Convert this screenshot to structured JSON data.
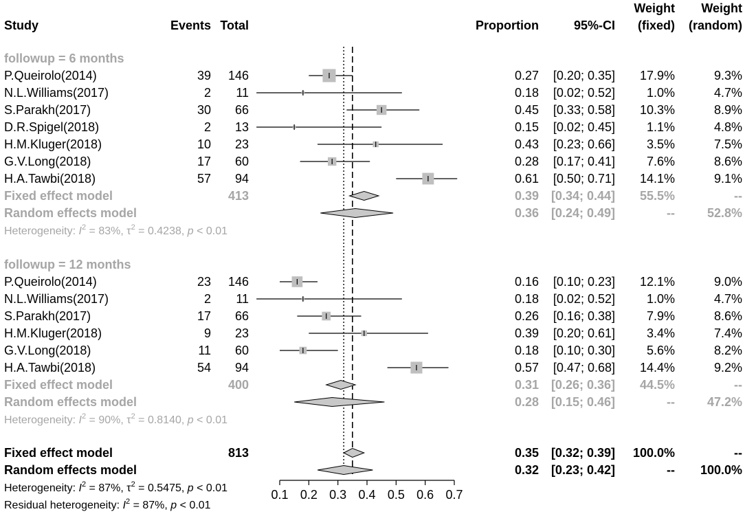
{
  "chart_data": {
    "type": "forest",
    "headers": {
      "study": "Study",
      "events": "Events",
      "total": "Total",
      "proportion": "Proportion",
      "ci": "95%-CI",
      "weight_fixed_1": "Weight",
      "weight_fixed_2": "(fixed)",
      "weight_random_1": "Weight",
      "weight_random_2": "(random)"
    },
    "axis": {
      "min": 0.1,
      "max": 0.7,
      "ticks": [
        "0.1",
        "0.2",
        "0.3",
        "0.4",
        "0.5",
        "0.6",
        "0.7"
      ]
    },
    "reference_lines": {
      "fixed": 0.35,
      "random": 0.32
    },
    "subgroups": [
      {
        "label": "followup = 6 months",
        "studies": [
          {
            "study": "P.Queirolo(2014)",
            "events": "39",
            "total": "146",
            "est": 0.27,
            "lo": 0.2,
            "hi": 0.35,
            "prop": "0.27",
            "ci": "[0.20; 0.35]",
            "wf": "17.9%",
            "wr": "9.3%"
          },
          {
            "study": "N.L.Williams(2017)",
            "events": "2",
            "total": "11",
            "est": 0.18,
            "lo": 0.02,
            "hi": 0.52,
            "prop": "0.18",
            "ci": "[0.02; 0.52]",
            "wf": "1.0%",
            "wr": "4.7%"
          },
          {
            "study": "S.Parakh(2017)",
            "events": "30",
            "total": "66",
            "est": 0.45,
            "lo": 0.33,
            "hi": 0.58,
            "prop": "0.45",
            "ci": "[0.33; 0.58]",
            "wf": "10.3%",
            "wr": "8.9%"
          },
          {
            "study": "D.R.Spigel(2018)",
            "events": "2",
            "total": "13",
            "est": 0.15,
            "lo": 0.02,
            "hi": 0.45,
            "prop": "0.15",
            "ci": "[0.02; 0.45]",
            "wf": "1.1%",
            "wr": "4.8%"
          },
          {
            "study": "H.M.Kluger(2018)",
            "events": "10",
            "total": "23",
            "est": 0.43,
            "lo": 0.23,
            "hi": 0.66,
            "prop": "0.43",
            "ci": "[0.23; 0.66]",
            "wf": "3.5%",
            "wr": "7.5%"
          },
          {
            "study": "G.V.Long(2018)",
            "events": "17",
            "total": "60",
            "est": 0.28,
            "lo": 0.17,
            "hi": 0.41,
            "prop": "0.28",
            "ci": "[0.17; 0.41]",
            "wf": "7.6%",
            "wr": "8.6%"
          },
          {
            "study": "H.A.Tawbi(2018)",
            "events": "57",
            "total": "94",
            "est": 0.61,
            "lo": 0.5,
            "hi": 0.71,
            "prop": "0.61",
            "ci": "[0.50; 0.71]",
            "wf": "14.1%",
            "wr": "9.1%"
          }
        ],
        "fixed": {
          "label": "Fixed effect model",
          "total": "413",
          "est": 0.39,
          "lo": 0.34,
          "hi": 0.44,
          "prop": "0.39",
          "ci": "[0.34; 0.44]",
          "wf": "55.5%",
          "wr": "--"
        },
        "random": {
          "label": "Random effects model",
          "est": 0.36,
          "lo": 0.24,
          "hi": 0.49,
          "prop": "0.36",
          "ci": "[0.24; 0.49]",
          "wf": "--",
          "wr": "52.8%"
        },
        "het": {
          "prefix": "Heterogeneity: ",
          "i2": "2",
          "i2_val": " = 83%, ",
          "tau": "τ",
          "tau_val": " = 0.4238, ",
          "p": "p",
          "p_val": " < 0.01"
        }
      },
      {
        "label": "followup = 12 months",
        "studies": [
          {
            "study": "P.Queirolo(2014)",
            "events": "23",
            "total": "146",
            "est": 0.16,
            "lo": 0.1,
            "hi": 0.23,
            "prop": "0.16",
            "ci": "[0.10; 0.23]",
            "wf": "12.1%",
            "wr": "9.0%"
          },
          {
            "study": "N.L.Williams(2017)",
            "events": "2",
            "total": "11",
            "est": 0.18,
            "lo": 0.02,
            "hi": 0.52,
            "prop": "0.18",
            "ci": "[0.02; 0.52]",
            "wf": "1.0%",
            "wr": "4.7%"
          },
          {
            "study": "S.Parakh(2017)",
            "events": "17",
            "total": "66",
            "est": 0.26,
            "lo": 0.16,
            "hi": 0.38,
            "prop": "0.26",
            "ci": "[0.16; 0.38]",
            "wf": "7.9%",
            "wr": "8.6%"
          },
          {
            "study": "H.M.Kluger(2018)",
            "events": "9",
            "total": "23",
            "est": 0.39,
            "lo": 0.2,
            "hi": 0.61,
            "prop": "0.39",
            "ci": "[0.20; 0.61]",
            "wf": "3.4%",
            "wr": "7.4%"
          },
          {
            "study": "G.V.Long(2018)",
            "events": "11",
            "total": "60",
            "est": 0.18,
            "lo": 0.1,
            "hi": 0.3,
            "prop": "0.18",
            "ci": "[0.10; 0.30]",
            "wf": "5.6%",
            "wr": "8.2%"
          },
          {
            "study": "H.A.Tawbi(2018)",
            "events": "54",
            "total": "94",
            "est": 0.57,
            "lo": 0.47,
            "hi": 0.68,
            "prop": "0.57",
            "ci": "[0.47; 0.68]",
            "wf": "14.4%",
            "wr": "9.2%"
          }
        ],
        "fixed": {
          "label": "Fixed effect model",
          "total": "400",
          "est": 0.31,
          "lo": 0.26,
          "hi": 0.36,
          "prop": "0.31",
          "ci": "[0.26; 0.36]",
          "wf": "44.5%",
          "wr": "--"
        },
        "random": {
          "label": "Random effects model",
          "est": 0.28,
          "lo": 0.15,
          "hi": 0.46,
          "prop": "0.28",
          "ci": "[0.15; 0.46]",
          "wf": "--",
          "wr": "47.2%"
        },
        "het": {
          "prefix": "Heterogeneity: ",
          "i2": "2",
          "i2_val": " = 90%, ",
          "tau": "τ",
          "tau_val": " = 0.8140, ",
          "p": "p",
          "p_val": " < 0.01"
        }
      }
    ],
    "overall": {
      "fixed": {
        "label": "Fixed effect model",
        "total": "813",
        "est": 0.35,
        "lo": 0.32,
        "hi": 0.39,
        "prop": "0.35",
        "ci": "[0.32; 0.39]",
        "wf": "100.0%",
        "wr": "--"
      },
      "random": {
        "label": "Random effects model",
        "est": 0.32,
        "lo": 0.23,
        "hi": 0.42,
        "prop": "0.32",
        "ci": "[0.23; 0.42]",
        "wf": "--",
        "wr": "100.0%"
      },
      "het": {
        "prefix": "Heterogeneity: ",
        "i2": "2",
        "i2_val": " = 87%, ",
        "tau": "τ",
        "tau_val": " = 0.5475, ",
        "p": "p",
        "p_val": " < 0.01"
      },
      "resid": {
        "prefix": "Residual heterogeneity: ",
        "i2": "2",
        "i2_val": " = 87%, ",
        "p": "p",
        "p_val": " < 0.01"
      }
    },
    "colors": {
      "text": "#000000",
      "muted": "#a6a6a6",
      "box": "#bfbfbf",
      "diamond": "#c8c8c8"
    }
  }
}
